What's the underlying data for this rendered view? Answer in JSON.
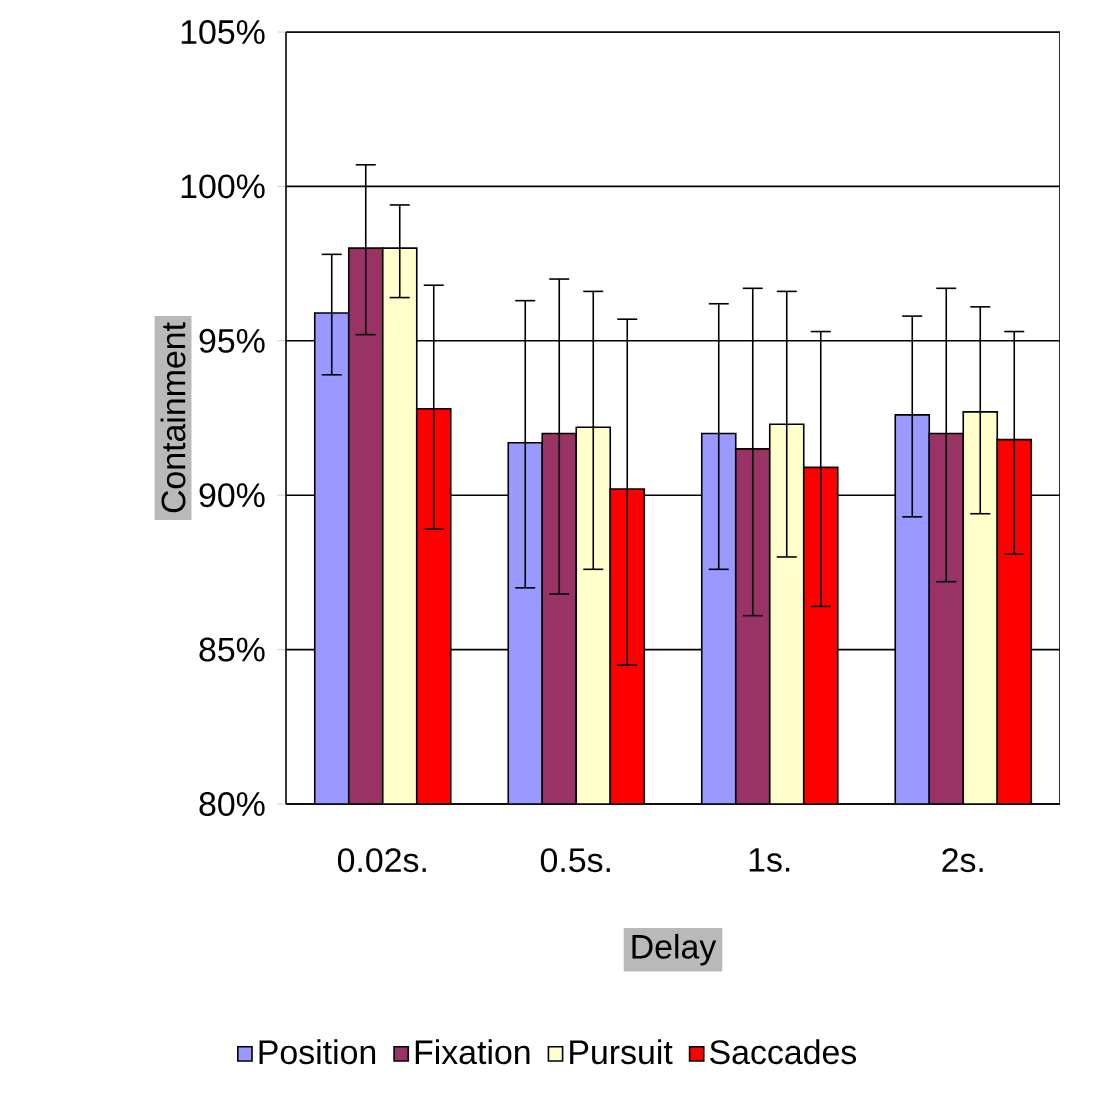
{
  "chart_data": {
    "type": "bar",
    "xlabel": "Delay",
    "ylabel": "Containment",
    "categories": [
      "0.02s.",
      "0.5s.",
      "1s.",
      "2s."
    ],
    "series": [
      {
        "name": "Position",
        "color": "#9999ff",
        "values": [
          95.9,
          91.7,
          92.0,
          92.6
        ],
        "errors": [
          [
            93.9,
            97.8
          ],
          [
            87.0,
            96.3
          ],
          [
            87.6,
            96.2
          ],
          [
            89.3,
            95.8
          ]
        ]
      },
      {
        "name": "Fixation",
        "color": "#993366",
        "values": [
          98.0,
          92.0,
          91.5,
          92.0
        ],
        "errors": [
          [
            95.2,
            100.7
          ],
          [
            86.8,
            97.0
          ],
          [
            86.1,
            96.7
          ],
          [
            87.2,
            96.7
          ]
        ]
      },
      {
        "name": "Pursuit",
        "color": "#ffffcc",
        "values": [
          98.0,
          92.2,
          92.3,
          92.7
        ],
        "errors": [
          [
            96.4,
            99.4
          ],
          [
            87.6,
            96.6
          ],
          [
            88.0,
            96.6
          ],
          [
            89.4,
            96.1
          ]
        ]
      },
      {
        "name": "Saccades",
        "color": "#ff0000",
        "values": [
          92.8,
          90.2,
          90.9,
          91.8
        ],
        "errors": [
          [
            88.9,
            96.8
          ],
          [
            84.5,
            95.7
          ],
          [
            86.4,
            95.3
          ],
          [
            88.1,
            95.3
          ]
        ]
      }
    ],
    "ylim": [
      80,
      105
    ],
    "yticks": [
      {
        "value": 80,
        "label": "80%"
      },
      {
        "value": 85,
        "label": "85%"
      },
      {
        "value": 90,
        "label": "90%"
      },
      {
        "value": 95,
        "label": "95%"
      },
      {
        "value": 100,
        "label": "100%"
      },
      {
        "value": 105,
        "label": "105%"
      }
    ],
    "grid": "y",
    "legend": "bottom"
  }
}
